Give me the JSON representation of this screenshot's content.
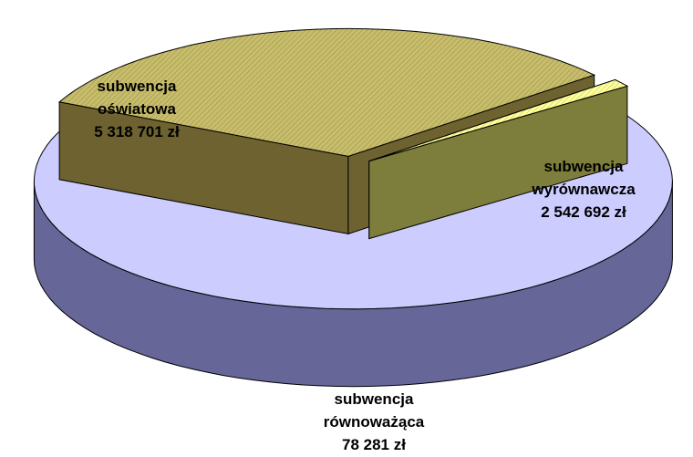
{
  "chart_data": {
    "type": "pie",
    "categories": [
      "subwencja oświatowa",
      "subwencja wyrównawcza",
      "subwencja równoważąca"
    ],
    "values": [
      5318701,
      2542692,
      78281
    ],
    "value_labels": [
      "5 318 701 zł",
      "2 542 692 zł",
      "78 281 zł"
    ],
    "colors": [
      "#ccccff",
      "#c8bd6a",
      "#ffff99"
    ],
    "side_colors": [
      "#666699",
      "#6e6230",
      "#7d7d3c"
    ]
  }
}
